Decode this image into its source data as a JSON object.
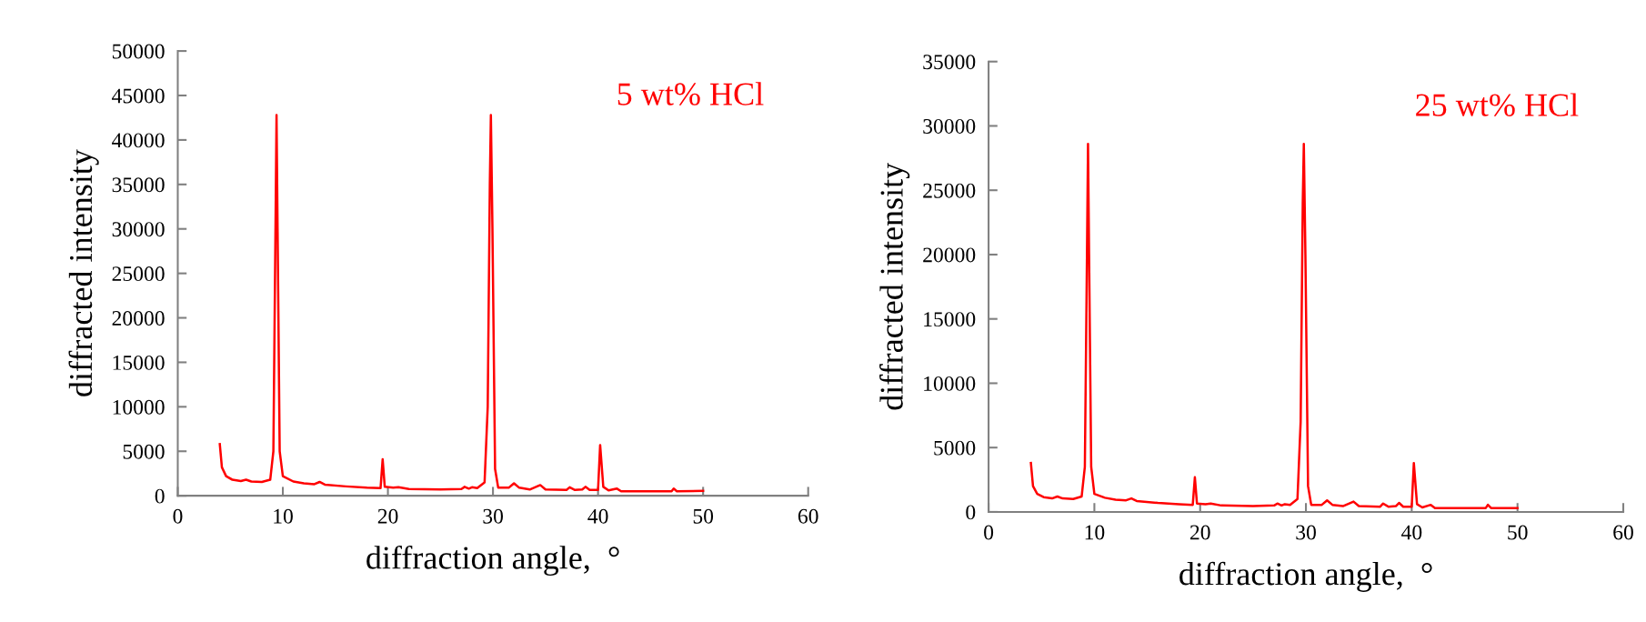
{
  "chart_data": [
    {
      "type": "line",
      "xlabel": "diffraction angle,  °",
      "ylabel": "diffracted intensity",
      "annotations": [
        "5 wt% HCl"
      ],
      "xlim": [
        0,
        60
      ],
      "ylim": [
        0,
        50000
      ],
      "xticks": [
        0,
        10,
        20,
        30,
        40,
        50,
        60
      ],
      "yticks": [
        0,
        5000,
        10000,
        15000,
        20000,
        25000,
        30000,
        35000,
        40000,
        45000,
        50000
      ],
      "x": [
        4.0,
        4.2,
        4.6,
        5.2,
        6.0,
        6.5,
        7.0,
        8.0,
        8.8,
        9.1,
        9.3,
        9.4,
        9.5,
        9.7,
        10.0,
        11,
        12,
        13,
        13.5,
        14,
        16,
        18,
        19.3,
        19.5,
        19.7,
        20.5,
        21,
        22,
        25,
        27,
        27.3,
        27.7,
        28,
        28.5,
        29.2,
        29.5,
        29.7,
        29.8,
        29.95,
        30.2,
        30.5,
        31.5,
        32,
        32.5,
        33.5,
        34.5,
        35,
        37,
        37.3,
        37.8,
        38.5,
        38.8,
        39.2,
        40,
        40.2,
        40.5,
        41,
        41.8,
        42.2,
        45,
        47,
        47.2,
        47.5,
        50
      ],
      "series": [
        {
          "color": "#ff0000",
          "values": [
            5800,
            3200,
            2200,
            1800,
            1650,
            1800,
            1600,
            1550,
            1800,
            5000,
            30000,
            42800,
            30000,
            5000,
            2200,
            1600,
            1400,
            1300,
            1550,
            1250,
            1050,
            900,
            850,
            4100,
            1000,
            900,
            950,
            750,
            700,
            750,
            1000,
            800,
            950,
            850,
            1500,
            10000,
            35000,
            42800,
            30000,
            3000,
            900,
            900,
            1400,
            900,
            700,
            1200,
            700,
            650,
            950,
            650,
            700,
            1000,
            650,
            650,
            5700,
            1000,
            600,
            800,
            500,
            500,
            500,
            800,
            500,
            550
          ]
        }
      ]
    },
    {
      "type": "line",
      "xlabel": "diffraction angle,  °",
      "ylabel": "diffracted intensity",
      "annotations": [
        "25 wt% HCl"
      ],
      "xlim": [
        0,
        60
      ],
      "ylim": [
        0,
        35000
      ],
      "xticks": [
        0,
        10,
        20,
        30,
        40,
        50,
        60
      ],
      "yticks": [
        0,
        5000,
        10000,
        15000,
        20000,
        25000,
        30000,
        35000
      ],
      "x": [
        4.0,
        4.2,
        4.6,
        5.2,
        6.0,
        6.5,
        7.0,
        8.0,
        8.8,
        9.1,
        9.3,
        9.4,
        9.5,
        9.7,
        10.0,
        11,
        12,
        13,
        13.5,
        14,
        16,
        18,
        19.3,
        19.5,
        19.7,
        20.5,
        21,
        22,
        25,
        27,
        27.3,
        27.7,
        28,
        28.5,
        29.2,
        29.5,
        29.7,
        29.8,
        29.95,
        30.2,
        30.5,
        31.5,
        32,
        32.5,
        33.5,
        34.5,
        35,
        37,
        37.3,
        37.8,
        38.5,
        38.8,
        39.2,
        40,
        40.2,
        40.5,
        41,
        41.8,
        42.2,
        45,
        47,
        47.2,
        47.5,
        50
      ],
      "series": [
        {
          "color": "#ff0000",
          "values": [
            3800,
            2000,
            1400,
            1150,
            1050,
            1200,
            1050,
            1000,
            1200,
            3500,
            20000,
            28600,
            20000,
            3500,
            1400,
            1100,
            950,
            900,
            1050,
            850,
            700,
            600,
            550,
            2700,
            650,
            600,
            650,
            500,
            450,
            500,
            650,
            500,
            600,
            550,
            1000,
            7000,
            24000,
            28600,
            20000,
            2000,
            550,
            550,
            900,
            550,
            450,
            800,
            450,
            400,
            650,
            400,
            450,
            700,
            400,
            400,
            3800,
            600,
            350,
            550,
            300,
            300,
            300,
            550,
            300,
            300
          ]
        }
      ]
    }
  ]
}
